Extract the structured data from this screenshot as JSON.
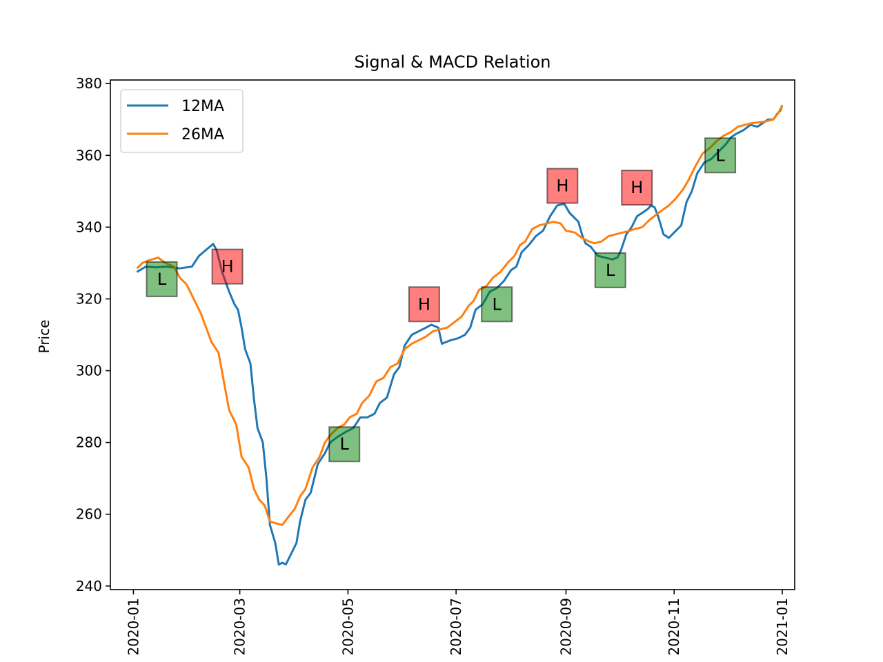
{
  "chart_data": {
    "type": "line",
    "title": "Signal & MACD Relation",
    "xlabel": "",
    "ylabel": "Price",
    "xlim": [
      "2019-12-19",
      "2021-01-08"
    ],
    "ylim": [
      239,
      381
    ],
    "x_ticks": [
      "2020-01",
      "2020-03",
      "2020-05",
      "2020-07",
      "2020-09",
      "2020-11",
      "2021-01"
    ],
    "y_ticks": [
      240,
      260,
      280,
      300,
      320,
      340,
      360,
      380
    ],
    "grid": false,
    "legend_position": "upper-left",
    "series": [
      {
        "name": "12MA",
        "color": "#1f77b4",
        "points": [
          [
            "2020-01-03",
            327.5
          ],
          [
            "2020-01-08",
            329.0
          ],
          [
            "2020-01-14",
            328.8
          ],
          [
            "2020-01-20",
            329.0
          ],
          [
            "2020-01-27",
            328.5
          ],
          [
            "2020-02-03",
            329.0
          ],
          [
            "2020-02-07",
            332.0
          ],
          [
            "2020-02-13",
            334.5
          ],
          [
            "2020-02-15",
            335.3
          ],
          [
            "2020-02-17",
            333.5
          ],
          [
            "2020-02-20",
            327.5
          ],
          [
            "2020-02-24",
            322.0
          ],
          [
            "2020-02-27",
            318.5
          ],
          [
            "2020-02-29",
            317.0
          ],
          [
            "2020-03-02",
            312.0
          ],
          [
            "2020-03-04",
            306.0
          ],
          [
            "2020-03-07",
            302.0
          ],
          [
            "2020-03-09",
            292.0
          ],
          [
            "2020-03-11",
            284.0
          ],
          [
            "2020-03-14",
            280.0
          ],
          [
            "2020-03-16",
            270.0
          ],
          [
            "2020-03-18",
            257.0
          ],
          [
            "2020-03-21",
            252.0
          ],
          [
            "2020-03-23",
            246.0
          ],
          [
            "2020-03-25",
            246.5
          ],
          [
            "2020-03-27",
            246.0
          ],
          [
            "2020-03-30",
            249.0
          ],
          [
            "2020-04-02",
            252.0
          ],
          [
            "2020-04-04",
            258.0
          ],
          [
            "2020-04-07",
            264.0
          ],
          [
            "2020-04-10",
            266.0
          ],
          [
            "2020-04-14",
            274.0
          ],
          [
            "2020-04-18",
            277.0
          ],
          [
            "2020-04-21",
            280.0
          ],
          [
            "2020-04-25",
            281.5
          ],
          [
            "2020-04-30",
            283.0
          ],
          [
            "2020-05-04",
            284.0
          ],
          [
            "2020-05-08",
            287.0
          ],
          [
            "2020-05-12",
            287.0
          ],
          [
            "2020-05-16",
            288.0
          ],
          [
            "2020-05-19",
            291.0
          ],
          [
            "2020-05-23",
            292.5
          ],
          [
            "2020-05-27",
            299.0
          ],
          [
            "2020-05-30",
            301.0
          ],
          [
            "2020-06-02",
            307.0
          ],
          [
            "2020-06-06",
            310.0
          ],
          [
            "2020-06-10",
            311.0
          ],
          [
            "2020-06-14",
            312.0
          ],
          [
            "2020-06-17",
            312.8
          ],
          [
            "2020-06-21",
            312.0
          ],
          [
            "2020-06-23",
            307.5
          ],
          [
            "2020-06-28",
            308.5
          ],
          [
            "2020-07-02",
            309.0
          ],
          [
            "2020-07-06",
            310.0
          ],
          [
            "2020-07-09",
            312.0
          ],
          [
            "2020-07-12",
            317.0
          ],
          [
            "2020-07-16",
            318.5
          ],
          [
            "2020-07-20",
            322.0
          ],
          [
            "2020-07-24",
            323.0
          ],
          [
            "2020-07-28",
            325.0
          ],
          [
            "2020-08-01",
            328.0
          ],
          [
            "2020-08-04",
            329.0
          ],
          [
            "2020-08-07",
            333.0
          ],
          [
            "2020-08-11",
            335.0
          ],
          [
            "2020-08-15",
            337.5
          ],
          [
            "2020-08-19",
            339.0
          ],
          [
            "2020-08-23",
            343.0
          ],
          [
            "2020-08-27",
            346.0
          ],
          [
            "2020-08-31",
            346.5
          ],
          [
            "2020-09-03",
            344.0
          ],
          [
            "2020-09-06",
            342.5
          ],
          [
            "2020-09-08",
            341.5
          ],
          [
            "2020-09-10",
            338.0
          ],
          [
            "2020-09-12",
            335.5
          ],
          [
            "2020-09-15",
            334.5
          ],
          [
            "2020-09-19",
            332.0
          ],
          [
            "2020-09-23",
            331.5
          ],
          [
            "2020-09-27",
            331.0
          ],
          [
            "2020-09-30",
            331.5
          ],
          [
            "2020-10-02",
            333.5
          ],
          [
            "2020-10-05",
            338.0
          ],
          [
            "2020-10-08",
            340.0
          ],
          [
            "2020-10-11",
            343.0
          ],
          [
            "2020-10-14",
            344.0
          ],
          [
            "2020-10-17",
            345.0
          ],
          [
            "2020-10-19",
            346.0
          ],
          [
            "2020-10-21",
            345.5
          ],
          [
            "2020-10-23",
            343.0
          ],
          [
            "2020-10-26",
            338.0
          ],
          [
            "2020-10-29",
            337.0
          ],
          [
            "2020-11-02",
            339.0
          ],
          [
            "2020-11-05",
            340.5
          ],
          [
            "2020-11-08",
            347.0
          ],
          [
            "2020-11-11",
            350.0
          ],
          [
            "2020-11-14",
            355.0
          ],
          [
            "2020-11-18",
            358.0
          ],
          [
            "2020-11-22",
            359.0
          ],
          [
            "2020-11-26",
            361.0
          ],
          [
            "2020-11-30",
            363.0
          ],
          [
            "2020-12-03",
            365.0
          ],
          [
            "2020-12-06",
            366.0
          ],
          [
            "2020-12-10",
            367.0
          ],
          [
            "2020-12-14",
            368.5
          ],
          [
            "2020-12-18",
            368.0
          ],
          [
            "2020-12-21",
            369.0
          ],
          [
            "2020-12-24",
            370.0
          ],
          [
            "2020-12-27",
            370.0
          ],
          [
            "2020-12-29",
            371.5
          ],
          [
            "2020-12-31",
            372.5
          ],
          [
            "2021-01-01",
            374.0
          ]
        ]
      },
      {
        "name": "26MA",
        "color": "#ff7f0e",
        "points": [
          [
            "2020-01-03",
            328.5
          ],
          [
            "2020-01-06",
            330.0
          ],
          [
            "2020-01-10",
            330.8
          ],
          [
            "2020-01-15",
            331.5
          ],
          [
            "2020-01-19",
            330.0
          ],
          [
            "2020-01-24",
            329.0
          ],
          [
            "2020-01-27",
            326.0
          ],
          [
            "2020-01-31",
            324.0
          ],
          [
            "2020-02-04",
            320.0
          ],
          [
            "2020-02-08",
            316.0
          ],
          [
            "2020-02-11",
            312.0
          ],
          [
            "2020-02-14",
            308.0
          ],
          [
            "2020-02-18",
            305.0
          ],
          [
            "2020-02-21",
            297.0
          ],
          [
            "2020-02-24",
            289.0
          ],
          [
            "2020-02-28",
            285.0
          ],
          [
            "2020-03-02",
            276.0
          ],
          [
            "2020-03-06",
            273.0
          ],
          [
            "2020-03-09",
            267.0
          ],
          [
            "2020-03-12",
            264.0
          ],
          [
            "2020-03-15",
            262.5
          ],
          [
            "2020-03-18",
            258.0
          ],
          [
            "2020-03-21",
            257.5
          ],
          [
            "2020-03-25",
            257.0
          ],
          [
            "2020-03-28",
            259.0
          ],
          [
            "2020-04-01",
            261.5
          ],
          [
            "2020-04-04",
            265.0
          ],
          [
            "2020-04-07",
            267.0
          ],
          [
            "2020-04-11",
            273.0
          ],
          [
            "2020-04-15",
            276.0
          ],
          [
            "2020-04-18",
            280.0
          ],
          [
            "2020-04-21",
            282.0
          ],
          [
            "2020-04-25",
            284.0
          ],
          [
            "2020-04-29",
            285.0
          ],
          [
            "2020-05-02",
            287.0
          ],
          [
            "2020-05-06",
            288.0
          ],
          [
            "2020-05-09",
            291.0
          ],
          [
            "2020-05-13",
            293.0
          ],
          [
            "2020-05-17",
            297.0
          ],
          [
            "2020-05-21",
            298.0
          ],
          [
            "2020-05-25",
            301.0
          ],
          [
            "2020-05-29",
            302.0
          ],
          [
            "2020-06-02",
            306.0
          ],
          [
            "2020-06-06",
            307.5
          ],
          [
            "2020-06-10",
            308.5
          ],
          [
            "2020-06-14",
            309.5
          ],
          [
            "2020-06-18",
            311.0
          ],
          [
            "2020-06-22",
            311.5
          ],
          [
            "2020-06-26",
            312.0
          ],
          [
            "2020-06-30",
            313.5
          ],
          [
            "2020-07-04",
            315.0
          ],
          [
            "2020-07-08",
            318.0
          ],
          [
            "2020-07-11",
            319.5
          ],
          [
            "2020-07-14",
            322.5
          ],
          [
            "2020-07-18",
            323.5
          ],
          [
            "2020-07-22",
            326.0
          ],
          [
            "2020-07-26",
            327.5
          ],
          [
            "2020-07-30",
            330.0
          ],
          [
            "2020-08-03",
            332.0
          ],
          [
            "2020-08-06",
            335.0
          ],
          [
            "2020-08-09",
            336.0
          ],
          [
            "2020-08-13",
            339.5
          ],
          [
            "2020-08-17",
            340.5
          ],
          [
            "2020-08-21",
            341.0
          ],
          [
            "2020-08-25",
            341.5
          ],
          [
            "2020-08-29",
            341.0
          ],
          [
            "2020-09-01",
            339.0
          ],
          [
            "2020-09-06",
            338.5
          ],
          [
            "2020-09-10",
            337.0
          ],
          [
            "2020-09-14",
            336.0
          ],
          [
            "2020-09-17",
            335.5
          ],
          [
            "2020-09-21",
            336.0
          ],
          [
            "2020-09-25",
            337.5
          ],
          [
            "2020-09-29",
            338.0
          ],
          [
            "2020-10-03",
            338.5
          ],
          [
            "2020-10-07",
            339.0
          ],
          [
            "2020-10-10",
            339.5
          ],
          [
            "2020-10-14",
            340.0
          ],
          [
            "2020-10-18",
            342.0
          ],
          [
            "2020-10-22",
            343.5
          ],
          [
            "2020-10-26",
            345.0
          ],
          [
            "2020-10-29",
            346.0
          ],
          [
            "2020-11-02",
            348.0
          ],
          [
            "2020-11-06",
            350.5
          ],
          [
            "2020-11-09",
            353.0
          ],
          [
            "2020-11-13",
            357.0
          ],
          [
            "2020-11-17",
            360.5
          ],
          [
            "2020-11-21",
            362.0
          ],
          [
            "2020-11-25",
            364.0
          ],
          [
            "2020-11-29",
            365.5
          ],
          [
            "2020-12-03",
            366.5
          ],
          [
            "2020-12-07",
            368.0
          ],
          [
            "2020-12-11",
            368.5
          ],
          [
            "2020-12-15",
            369.0
          ],
          [
            "2020-12-19",
            369.2
          ],
          [
            "2020-12-23",
            369.5
          ],
          [
            "2020-12-27",
            370.0
          ],
          [
            "2020-12-30",
            372.0
          ],
          [
            "2021-01-01",
            374.0
          ]
        ]
      }
    ],
    "annotations": [
      {
        "label": "L",
        "kind": "low",
        "date": "2020-01-17",
        "value": 325.5,
        "color": "#008000"
      },
      {
        "label": "H",
        "kind": "high",
        "date": "2020-02-23",
        "value": 329.0,
        "color": "#ff0000"
      },
      {
        "label": "L",
        "kind": "low",
        "date": "2020-04-29",
        "value": 279.5,
        "color": "#008000"
      },
      {
        "label": "H",
        "kind": "high",
        "date": "2020-06-13",
        "value": 318.5,
        "color": "#ff0000"
      },
      {
        "label": "L",
        "kind": "low",
        "date": "2020-07-24",
        "value": 318.5,
        "color": "#008000"
      },
      {
        "label": "H",
        "kind": "high",
        "date": "2020-08-30",
        "value": 351.5,
        "color": "#ff0000"
      },
      {
        "label": "L",
        "kind": "low",
        "date": "2020-09-26",
        "value": 328.0,
        "color": "#008000"
      },
      {
        "label": "H",
        "kind": "high",
        "date": "2020-10-11",
        "value": 351.0,
        "color": "#ff0000"
      },
      {
        "label": "L",
        "kind": "low",
        "date": "2020-11-27",
        "value": 360.0,
        "color": "#008000"
      }
    ]
  }
}
